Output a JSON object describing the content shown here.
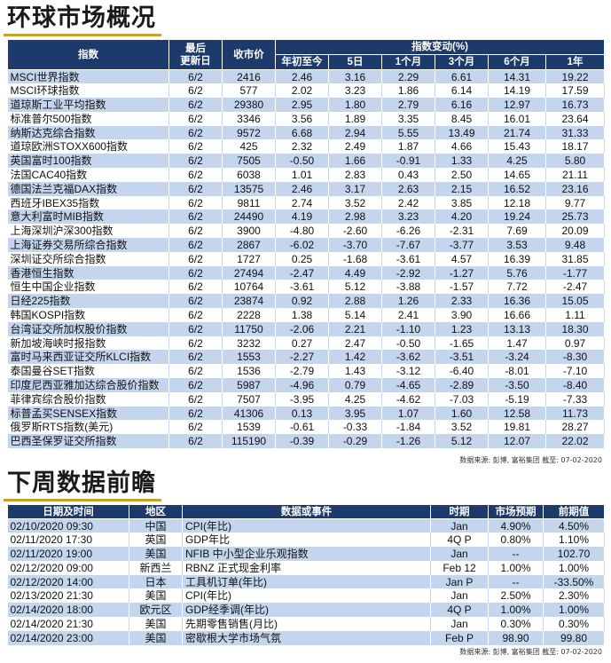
{
  "colors": {
    "header_bg": "#1d3a6d",
    "stripe_bg": "#c3d6ee",
    "title_accent": "#c9a227",
    "title_text": "#1a1a1a"
  },
  "market_overview": {
    "title": "环球市场概况",
    "headers": {
      "index": "指数",
      "last_update_line1": "最后",
      "last_update_line2": "更新日",
      "close": "收市价",
      "change_group": "指数变动(%)",
      "ytd": "年初至今",
      "d5": "5日",
      "m1": "1个月",
      "m3": "3个月",
      "m6": "6个月",
      "y1": "1年"
    },
    "rows": [
      {
        "name": "MSCI世界指数",
        "updated": "6/2",
        "close": "2416",
        "ytd": "2.46",
        "d5": "3.16",
        "m1": "2.29",
        "m3": "6.61",
        "m6": "14.31",
        "y1": "19.22"
      },
      {
        "name": "MSCI环球指数",
        "updated": "6/2",
        "close": "577",
        "ytd": "2.02",
        "d5": "3.23",
        "m1": "1.86",
        "m3": "6.14",
        "m6": "14.19",
        "y1": "17.59"
      },
      {
        "name": "道琼斯工业平均指数",
        "updated": "6/2",
        "close": "29380",
        "ytd": "2.95",
        "d5": "1.80",
        "m1": "2.79",
        "m3": "6.16",
        "m6": "12.97",
        "y1": "16.73"
      },
      {
        "name": "标准普尔500指数",
        "updated": "6/2",
        "close": "3346",
        "ytd": "3.56",
        "d5": "1.89",
        "m1": "3.35",
        "m3": "8.45",
        "m6": "16.01",
        "y1": "23.64"
      },
      {
        "name": "纳斯达克综合指数",
        "updated": "6/2",
        "close": "9572",
        "ytd": "6.68",
        "d5": "2.94",
        "m1": "5.55",
        "m3": "13.49",
        "m6": "21.74",
        "y1": "31.33"
      },
      {
        "name": "道琼欧洲STOXX600指数",
        "updated": "6/2",
        "close": "425",
        "ytd": "2.32",
        "d5": "2.49",
        "m1": "1.87",
        "m3": "4.66",
        "m6": "15.43",
        "y1": "18.17"
      },
      {
        "name": "英国富时100指数",
        "updated": "6/2",
        "close": "7505",
        "ytd": "-0.50",
        "d5": "1.66",
        "m1": "-0.91",
        "m3": "1.33",
        "m6": "4.25",
        "y1": "5.80"
      },
      {
        "name": "法国CAC40指数",
        "updated": "6/2",
        "close": "6038",
        "ytd": "1.01",
        "d5": "2.83",
        "m1": "0.43",
        "m3": "2.50",
        "m6": "14.65",
        "y1": "21.11"
      },
      {
        "name": "德国法兰克福DAX指数",
        "updated": "6/2",
        "close": "13575",
        "ytd": "2.46",
        "d5": "3.17",
        "m1": "2.63",
        "m3": "2.15",
        "m6": "16.52",
        "y1": "23.16"
      },
      {
        "name": "西班牙IBEX35指数",
        "updated": "6/2",
        "close": "9811",
        "ytd": "2.74",
        "d5": "3.52",
        "m1": "2.42",
        "m3": "3.85",
        "m6": "12.18",
        "y1": "9.77"
      },
      {
        "name": "意大利富时MIB指数",
        "updated": "6/2",
        "close": "24490",
        "ytd": "4.19",
        "d5": "2.98",
        "m1": "3.23",
        "m3": "4.20",
        "m6": "19.24",
        "y1": "25.73"
      },
      {
        "name": "上海深圳沪深300指数",
        "updated": "6/2",
        "close": "3900",
        "ytd": "-4.80",
        "d5": "-2.60",
        "m1": "-6.26",
        "m3": "-2.31",
        "m6": "7.69",
        "y1": "20.09"
      },
      {
        "name": "上海证券交易所综合指数",
        "updated": "6/2",
        "close": "2867",
        "ytd": "-6.02",
        "d5": "-3.70",
        "m1": "-7.67",
        "m3": "-3.77",
        "m6": "3.53",
        "y1": "9.48"
      },
      {
        "name": "深圳证交所综合指数",
        "updated": "6/2",
        "close": "1727",
        "ytd": "0.25",
        "d5": "-1.68",
        "m1": "-3.61",
        "m3": "4.57",
        "m6": "16.39",
        "y1": "31.85"
      },
      {
        "name": "香港恒生指数",
        "updated": "6/2",
        "close": "27494",
        "ytd": "-2.47",
        "d5": "4.49",
        "m1": "-2.92",
        "m3": "-1.27",
        "m6": "5.76",
        "y1": "-1.77"
      },
      {
        "name": "恒生中国企业指数",
        "updated": "6/2",
        "close": "10764",
        "ytd": "-3.61",
        "d5": "5.12",
        "m1": "-3.88",
        "m3": "-1.57",
        "m6": "7.72",
        "y1": "-2.47"
      },
      {
        "name": "日经225指数",
        "updated": "6/2",
        "close": "23874",
        "ytd": "0.92",
        "d5": "2.88",
        "m1": "1.26",
        "m3": "2.33",
        "m6": "16.36",
        "y1": "15.05"
      },
      {
        "name": "韩国KOSPI指数",
        "updated": "6/2",
        "close": "2228",
        "ytd": "1.38",
        "d5": "5.14",
        "m1": "2.41",
        "m3": "3.90",
        "m6": "16.66",
        "y1": "1.11"
      },
      {
        "name": "台湾证交所加权股价指数",
        "updated": "6/2",
        "close": "11750",
        "ytd": "-2.06",
        "d5": "2.21",
        "m1": "-1.10",
        "m3": "1.23",
        "m6": "13.13",
        "y1": "18.30"
      },
      {
        "name": "新加坡海峡时报指数",
        "updated": "6/2",
        "close": "3232",
        "ytd": "0.27",
        "d5": "2.47",
        "m1": "-0.50",
        "m3": "-1.65",
        "m6": "1.47",
        "y1": "0.97"
      },
      {
        "name": "富时马来西亚证交所KLCI指数",
        "updated": "6/2",
        "close": "1553",
        "ytd": "-2.27",
        "d5": "1.42",
        "m1": "-3.62",
        "m3": "-3.51",
        "m6": "-3.24",
        "y1": "-8.30"
      },
      {
        "name": "泰国曼谷SET指数",
        "updated": "6/2",
        "close": "1536",
        "ytd": "-2.79",
        "d5": "1.43",
        "m1": "-3.12",
        "m3": "-6.40",
        "m6": "-8.01",
        "y1": "-7.10"
      },
      {
        "name": "印度尼西亚雅加达综合股价指数",
        "updated": "6/2",
        "close": "5987",
        "ytd": "-4.96",
        "d5": "0.79",
        "m1": "-4.65",
        "m3": "-2.89",
        "m6": "-3.50",
        "y1": "-8.40"
      },
      {
        "name": "菲律宾综合股价指数",
        "updated": "6/2",
        "close": "7507",
        "ytd": "-3.95",
        "d5": "4.25",
        "m1": "-4.62",
        "m3": "-7.03",
        "m6": "-5.19",
        "y1": "-7.33"
      },
      {
        "name": "标普孟买SENSEX指数",
        "updated": "6/2",
        "close": "41306",
        "ytd": "0.13",
        "d5": "3.95",
        "m1": "1.07",
        "m3": "1.60",
        "m6": "12.58",
        "y1": "11.73"
      },
      {
        "name": "俄罗斯RTS指数(美元)",
        "updated": "6/2",
        "close": "1539",
        "ytd": "-0.61",
        "d5": "-0.33",
        "m1": "-1.84",
        "m3": "3.52",
        "m6": "19.81",
        "y1": "28.27"
      },
      {
        "name": "巴西圣保罗证交所指数",
        "updated": "6/2",
        "close": "115190",
        "ytd": "-0.39",
        "d5": "-0.29",
        "m1": "-1.26",
        "m3": "5.12",
        "m6": "12.07",
        "y1": "22.02"
      }
    ],
    "source": "数据来源: 彭博, 富裕集团 截至: 07-02-2020"
  },
  "calendar": {
    "title": "下周数据前瞻",
    "headers": {
      "datetime": "日期及时间",
      "region": "地区",
      "event": "数据或事件",
      "period": "时期",
      "forecast": "市场预期",
      "previous": "前期值"
    },
    "rows": [
      {
        "datetime": "02/10/2020 09:30",
        "region": "中国",
        "event": "CPI(年比)",
        "period": "Jan",
        "forecast": "4.90%",
        "previous": "4.50%"
      },
      {
        "datetime": "02/11/2020 17:30",
        "region": "英国",
        "event": "GDP年比",
        "period": "4Q P",
        "forecast": "0.80%",
        "previous": "1.10%"
      },
      {
        "datetime": "02/11/2020 19:00",
        "region": "美国",
        "event": "NFIB 中小型企业乐观指数",
        "period": "Jan",
        "forecast": "--",
        "previous": "102.70"
      },
      {
        "datetime": "02/12/2020 09:00",
        "region": "新西兰",
        "event": "RBNZ 正式现金利率",
        "period": "Feb 12",
        "forecast": "1.00%",
        "previous": "1.00%"
      },
      {
        "datetime": "02/12/2020 14:00",
        "region": "日本",
        "event": "工具机订单(年比)",
        "period": "Jan P",
        "forecast": "--",
        "previous": "-33.50%"
      },
      {
        "datetime": "02/13/2020 21:30",
        "region": "美国",
        "event": "CPI(年比)",
        "period": "Jan",
        "forecast": "2.50%",
        "previous": "2.30%"
      },
      {
        "datetime": "02/14/2020 18:00",
        "region": "欧元区",
        "event": "GDP经季调(年比)",
        "period": "4Q P",
        "forecast": "1.00%",
        "previous": "1.00%"
      },
      {
        "datetime": "02/14/2020 21:30",
        "region": "美国",
        "event": "先期零售销售(月比)",
        "period": "Jan",
        "forecast": "0.30%",
        "previous": "0.30%"
      },
      {
        "datetime": "02/14/2020 23:00",
        "region": "美国",
        "event": "密歇根大学市场气氛",
        "period": "Feb P",
        "forecast": "98.90",
        "previous": "99.80"
      }
    ],
    "source": "数据来源: 彭博, 富裕集团 截至: 07-02-2020"
  }
}
